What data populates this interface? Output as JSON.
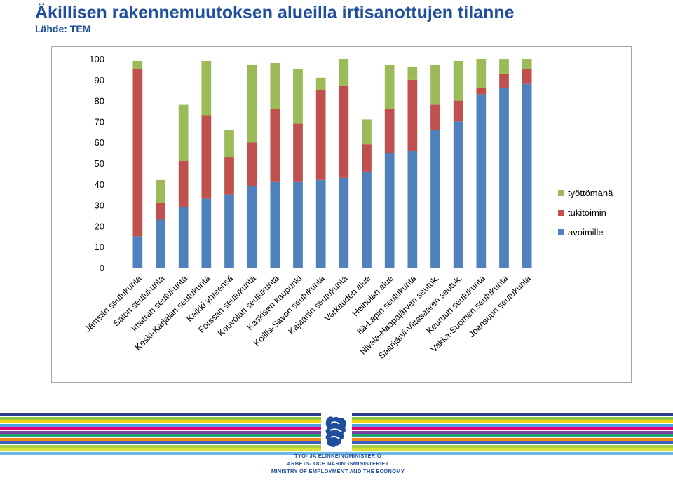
{
  "header": {
    "title": "Äkillisen rakennemuutoksen alueilla irtisanottujen tilanne",
    "source": "Lähde: TEM"
  },
  "chart_data": {
    "type": "bar",
    "stacked": true,
    "categories": [
      "Jämsän seutukunta",
      "Salon seutukunta",
      "Imatran seutukunta",
      "Keski-Karjalan seutukunta",
      "Kaikki yhteensä",
      "Forssan seutukunta",
      "Kouvolan seutukunta",
      "Kaskisen kaupunki",
      "Koillis-Savon seutukunta",
      "Kajaanin seutukunta",
      "Varkauden alue",
      "Heinolan alue",
      "Itä-Lapin seutukunta",
      "Nivala-Haapajärven seutuk.",
      "Saarijärvi-Viitasaaren seutuk.",
      "Keuruun seutukunta",
      "Vakka-Suomen seutukunta",
      "Joensuun seutukunta"
    ],
    "series": [
      {
        "name": "avoimille",
        "color": "#4f81bd",
        "values": [
          15,
          23,
          29,
          33,
          35,
          39,
          41,
          41,
          42,
          43,
          46,
          55,
          56,
          66,
          70,
          83,
          86,
          88
        ]
      },
      {
        "name": "tukitoimin",
        "color": "#c0504d",
        "values": [
          80,
          8,
          22,
          40,
          18,
          21,
          35,
          28,
          43,
          44,
          13,
          21,
          34,
          12,
          10,
          3,
          7,
          7
        ]
      },
      {
        "name": "työttömänä",
        "color": "#9bbb59",
        "values": [
          4,
          11,
          27,
          26,
          13,
          37,
          22,
          26,
          6,
          13,
          12,
          21,
          6,
          19,
          19,
          14,
          7,
          5
        ]
      }
    ],
    "y_ticks": [
      "0",
      "10",
      "20",
      "30",
      "40",
      "50",
      "60",
      "70",
      "80",
      "90",
      "100"
    ],
    "ylim": [
      0,
      100
    ],
    "grid": false,
    "legend_position": "right",
    "legend_order": [
      "työttömänä",
      "tukitoimin",
      "avoimille"
    ],
    "xlabel": "",
    "ylabel": ""
  },
  "footer": {
    "ministry_lines": [
      "TYÖ- JA ELINKEINOMINISTERIÖ",
      "ARBETS- OCH NÄRINGSMINISTERIET",
      "MINISTRY OF EMPLOYMENT AND THE ECONOMY"
    ],
    "stripe_colors": [
      "#2a3d8f",
      "#8cc63f",
      "#f2d80c",
      "#4aa3df",
      "#e5007e",
      "#7b3fa0",
      "#1fa36b",
      "#f08a1c",
      "#3b5fc0",
      "#a8cf45",
      "#d6e236",
      "#6fb8e6"
    ],
    "emblem_color": "#1f4e9c"
  }
}
